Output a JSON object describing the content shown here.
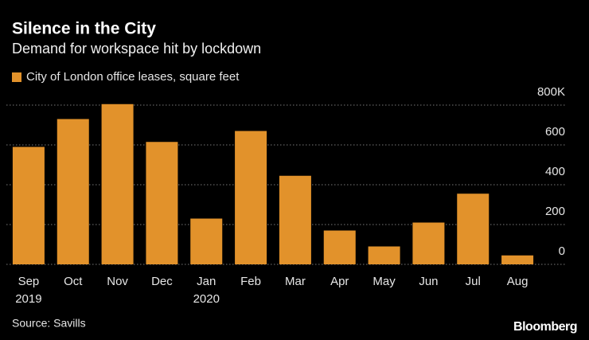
{
  "chart_data": {
    "type": "bar",
    "title": "Silence in the City",
    "subtitle": "Demand for workspace hit by lockdown",
    "categories": [
      [
        "Sep",
        "2019"
      ],
      "Oct",
      "Nov",
      "Dec",
      [
        "Jan",
        "2020"
      ],
      "Feb",
      "Mar",
      "Apr",
      "May",
      "Jun",
      "Jul",
      "Aug"
    ],
    "series": [
      {
        "name": "City of London office leases, square feet",
        "color": "#e2922b",
        "values": [
          590,
          730,
          805,
          615,
          230,
          670,
          445,
          170,
          90,
          210,
          355,
          45
        ]
      }
    ],
    "ylim": [
      0,
      800
    ],
    "yticks": [
      0,
      200,
      400,
      600,
      {
        "value": 800,
        "label": "800K"
      }
    ],
    "grid": true,
    "source": "Source: Savills",
    "brand": "Bloomberg"
  }
}
